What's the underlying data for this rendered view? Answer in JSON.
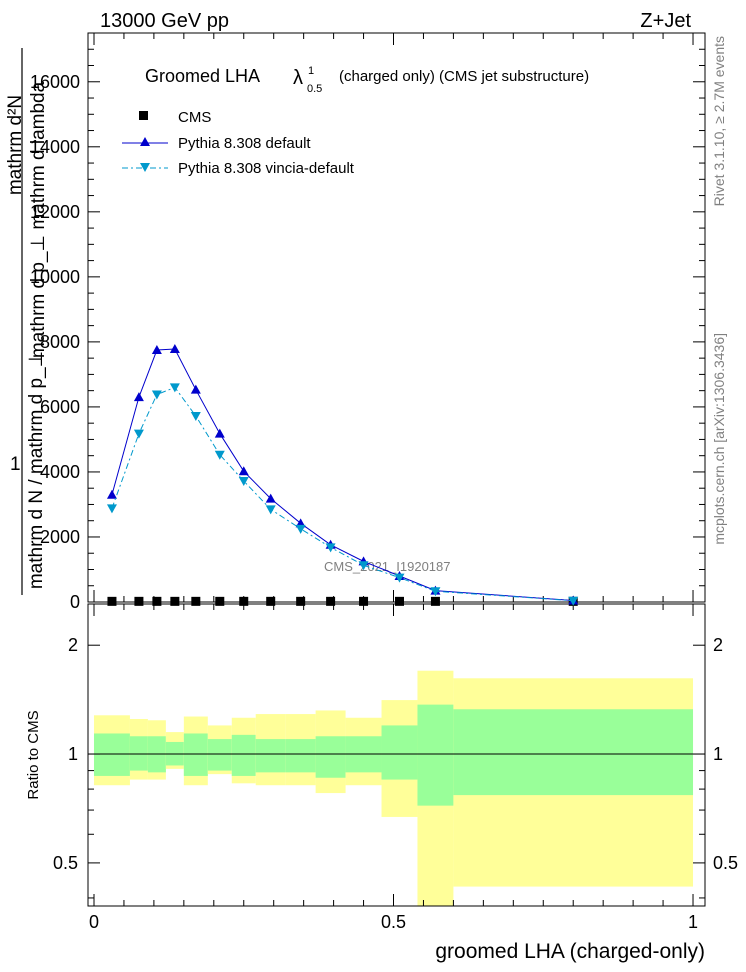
{
  "header": {
    "left": "13000 GeV pp",
    "right": "Z+Jet"
  },
  "side": {
    "rivet": "Rivet 3.1.10, ≥ 2.7M events",
    "mcplots": "mcplots.cern.ch [arXiv:1306.3436]"
  },
  "main": {
    "title_main": "Groomed LHA",
    "title_lambda": "λ",
    "title_sup": "1",
    "title_sub": "0.5",
    "title_rest": "(charged only) (CMS jet substructure)",
    "watermark": "CMS_2021_I1920187",
    "ylabel_top": "mathrm d²N",
    "ylabel_mid": "mathrm d p_⊥ mathrm d lambda",
    "ylabel_one": "1",
    "ylabel_bot": "mathrm d N / mathrm d p_⊥",
    "yticks": [
      "0",
      "2000",
      "4000",
      "6000",
      "8000",
      "10000",
      "12000",
      "14000",
      "16000"
    ]
  },
  "ratio": {
    "ylabel": "Ratio to CMS",
    "yticks": [
      "0.5",
      "1",
      "2"
    ]
  },
  "xaxis": {
    "label": "groomed LHA (charged-only)",
    "ticks": [
      "0",
      "0.5",
      "1"
    ]
  },
  "legend": [
    {
      "label": "CMS",
      "color": "#000000",
      "marker": "square"
    },
    {
      "label": "Pythia 8.308 default",
      "color": "#0000cc",
      "marker": "triangle-up"
    },
    {
      "label": "Pythia 8.308 vincia-default",
      "color": "#0099cc",
      "marker": "triangle-down"
    }
  ],
  "chart_data": {
    "type": "line",
    "xlim": [
      -0.01,
      1.02
    ],
    "ylim": [
      0,
      17500
    ],
    "ratio_ylim": [
      0.38,
      2.6
    ],
    "bins": [
      [
        0.0,
        0.06
      ],
      [
        0.06,
        0.09
      ],
      [
        0.09,
        0.12
      ],
      [
        0.12,
        0.15
      ],
      [
        0.15,
        0.19
      ],
      [
        0.19,
        0.23
      ],
      [
        0.23,
        0.27
      ],
      [
        0.27,
        0.32
      ],
      [
        0.32,
        0.37
      ],
      [
        0.37,
        0.42
      ],
      [
        0.42,
        0.48
      ],
      [
        0.48,
        0.54
      ],
      [
        0.54,
        0.6
      ],
      [
        0.6,
        1.0
      ]
    ],
    "x": [
      0.03,
      0.075,
      0.105,
      0.135,
      0.17,
      0.21,
      0.25,
      0.295,
      0.345,
      0.395,
      0.45,
      0.51,
      0.57,
      0.8
    ],
    "series": [
      {
        "name": "CMS",
        "values": [
          20,
          20,
          20,
          20,
          20,
          20,
          20,
          20,
          20,
          20,
          20,
          20,
          20,
          20
        ]
      },
      {
        "name": "Pythia 8.308 default",
        "values": [
          3300,
          6300,
          7750,
          7780,
          6530,
          5180,
          4020,
          3180,
          2420,
          1760,
          1250,
          800,
          350,
          45
        ]
      },
      {
        "name": "Pythia 8.308 vincia-default",
        "values": [
          2880,
          5180,
          6380,
          6600,
          5720,
          4530,
          3720,
          2850,
          2250,
          1680,
          1130,
          750,
          330,
          40
        ]
      }
    ],
    "ratio_bands": {
      "green_lo": [
        0.87,
        0.9,
        0.89,
        0.93,
        0.87,
        0.9,
        0.87,
        0.89,
        0.89,
        0.86,
        0.89,
        0.85,
        0.72,
        0.77
      ],
      "green_hi": [
        1.14,
        1.12,
        1.12,
        1.08,
        1.14,
        1.1,
        1.13,
        1.1,
        1.1,
        1.12,
        1.12,
        1.2,
        1.37,
        1.33
      ],
      "yellow_lo": [
        0.82,
        0.85,
        0.85,
        0.91,
        0.82,
        0.88,
        0.83,
        0.82,
        0.82,
        0.78,
        0.82,
        0.67,
        0.38,
        0.43
      ],
      "yellow_hi": [
        1.28,
        1.25,
        1.24,
        1.15,
        1.27,
        1.2,
        1.26,
        1.29,
        1.29,
        1.32,
        1.26,
        1.41,
        1.7,
        1.62
      ]
    }
  }
}
